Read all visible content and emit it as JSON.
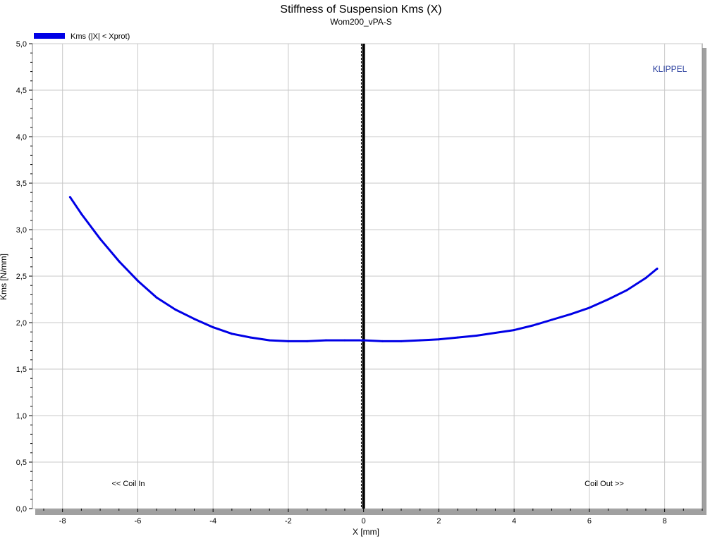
{
  "chart_data": {
    "type": "line",
    "title": "Stiffness of Suspension Kms (X)",
    "subtitle": "Wom200_vPA-S",
    "xlabel": "X [mm]",
    "ylabel": "Kms [N/mm]",
    "xlim": [
      -8.8,
      9.0
    ],
    "ylim": [
      0.0,
      5.0
    ],
    "x_ticks": [
      -8,
      -6,
      -4,
      -2,
      0,
      2,
      4,
      6,
      8
    ],
    "y_ticks": [
      0.0,
      0.5,
      1.0,
      1.5,
      2.0,
      2.5,
      3.0,
      3.5,
      4.0,
      4.5,
      5.0
    ],
    "x_tick_labels": [
      "-8",
      "-6",
      "-4",
      "-2",
      "0",
      "2",
      "4",
      "6",
      "8"
    ],
    "y_tick_labels": [
      "0,0",
      "0,5",
      "1,0",
      "1,5",
      "2,0",
      "2,5",
      "3,0",
      "3,5",
      "4,0",
      "4,5",
      "5,0"
    ],
    "grid": true,
    "legend_position": "top-left",
    "series": [
      {
        "name": "Kms (|X| < Xprot)",
        "color": "#0000e6",
        "x": [
          -7.8,
          -7.5,
          -7.0,
          -6.5,
          -6.0,
          -5.5,
          -5.0,
          -4.5,
          -4.0,
          -3.5,
          -3.0,
          -2.5,
          -2.0,
          -1.5,
          -1.0,
          -0.5,
          0.0,
          0.5,
          1.0,
          1.5,
          2.0,
          2.5,
          3.0,
          3.5,
          4.0,
          4.5,
          5.0,
          5.5,
          6.0,
          6.5,
          7.0,
          7.5,
          7.8
        ],
        "y": [
          3.35,
          3.17,
          2.9,
          2.66,
          2.45,
          2.27,
          2.14,
          2.04,
          1.95,
          1.88,
          1.84,
          1.81,
          1.8,
          1.8,
          1.81,
          1.81,
          1.81,
          1.8,
          1.8,
          1.81,
          1.82,
          1.84,
          1.86,
          1.89,
          1.92,
          1.97,
          2.03,
          2.09,
          2.16,
          2.25,
          2.35,
          2.48,
          2.58
        ]
      }
    ],
    "vertical_lines": [
      {
        "x": 0.0,
        "style": "solid-thick",
        "color": "#000000"
      },
      {
        "x": -0.06,
        "style": "dashed",
        "color": "#000000"
      }
    ],
    "annotations": {
      "brand": "KLIPPEL",
      "coil_in": "<< Coil In",
      "coil_out": "Coil Out >>"
    }
  },
  "colors": {
    "brand": "#2a3f9e",
    "grid": "#c8c8c8",
    "frame_shadow": "#a0a0a0"
  }
}
